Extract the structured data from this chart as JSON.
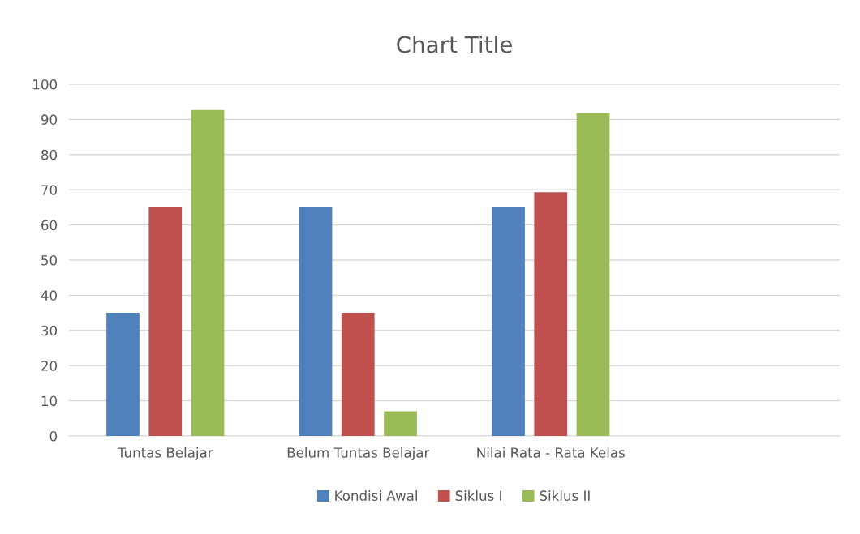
{
  "chart_data": {
    "type": "bar",
    "title": "Chart Title",
    "categories": [
      "Tuntas Belajar",
      "Belum Tuntas Belajar",
      "Nilai Rata - Rata Kelas",
      null
    ],
    "series": [
      {
        "name": "Kondisi Awal",
        "color": "#4f81bd",
        "values": [
          35,
          65,
          65,
          null
        ]
      },
      {
        "name": "Siklus I",
        "color": "#c0504d",
        "values": [
          65,
          35,
          69.3,
          null
        ]
      },
      {
        "name": "Siklus II",
        "color": "#9bbb59",
        "values": [
          92.7,
          7,
          91.8,
          null
        ]
      }
    ],
    "ylim": [
      0,
      100
    ],
    "yticks": [
      0,
      10,
      20,
      30,
      40,
      50,
      60,
      70,
      80,
      90,
      100
    ],
    "grid": "y",
    "legend": "bottom"
  }
}
